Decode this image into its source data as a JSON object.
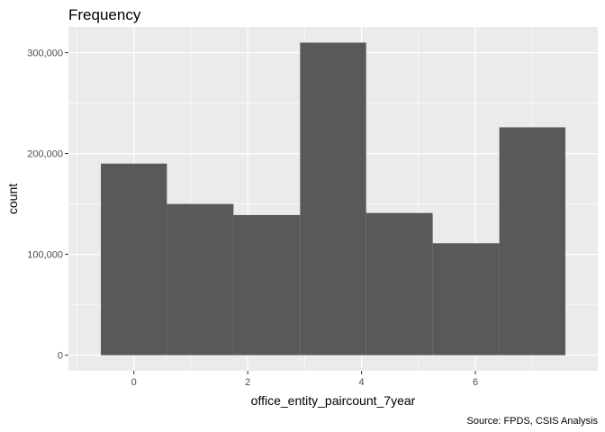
{
  "chart_data": {
    "type": "bar",
    "title": "Frequency",
    "xlabel": "office_entity_paircount_7year",
    "ylabel": "count",
    "caption": "Source: FPDS, CSIS Analysis",
    "bars": [
      {
        "x_start": -0.58,
        "x_end": 0.58,
        "value": 190000
      },
      {
        "x_start": 0.58,
        "x_end": 1.75,
        "value": 150000
      },
      {
        "x_start": 1.75,
        "x_end": 2.92,
        "value": 139000
      },
      {
        "x_start": 2.92,
        "x_end": 4.08,
        "value": 310000
      },
      {
        "x_start": 4.08,
        "x_end": 5.25,
        "value": 141000
      },
      {
        "x_start": 5.25,
        "x_end": 6.42,
        "value": 111000
      },
      {
        "x_start": 6.42,
        "x_end": 7.58,
        "value": 226000
      }
    ],
    "x_ticks": [
      {
        "value": 0,
        "label": "0"
      },
      {
        "value": 2,
        "label": "2"
      },
      {
        "value": 4,
        "label": "4"
      },
      {
        "value": 6,
        "label": "6"
      }
    ],
    "y_ticks": [
      {
        "value": 0,
        "label": "0"
      },
      {
        "value": 100000,
        "label": "100,000"
      },
      {
        "value": 200000,
        "label": "200,000"
      },
      {
        "value": 300000,
        "label": "300,000"
      }
    ],
    "xlim": [
      -1.15,
      8.15
    ],
    "ylim": [
      -15500,
      325500
    ],
    "grid": true,
    "colors": {
      "bar": "#595959",
      "panel": "#ebebeb",
      "grid": "#ffffff"
    }
  }
}
